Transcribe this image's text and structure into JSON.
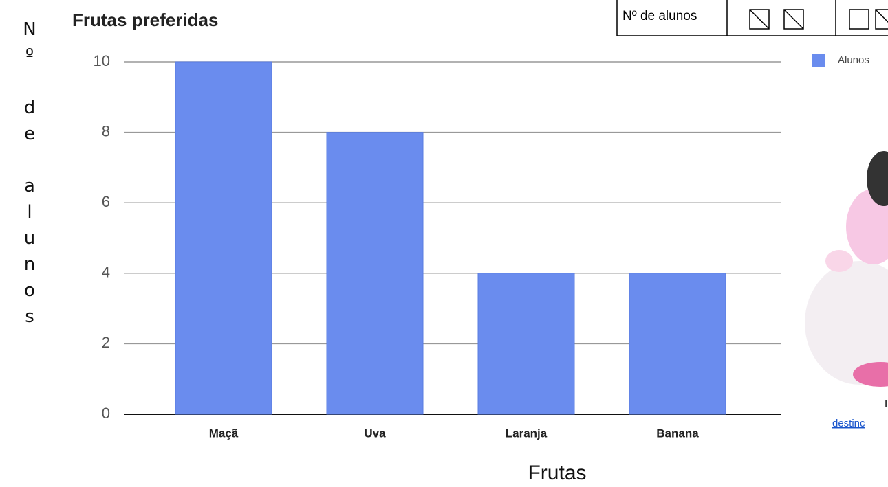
{
  "chart_data": {
    "type": "bar",
    "title": "Frutas preferidas",
    "x_label": "Frutas",
    "y_label": "Nº de alunos",
    "categories": [
      "Maçã",
      "Uva",
      "Laranja",
      "Banana"
    ],
    "series": [
      {
        "name": "Alunos",
        "color": "#6a8cee",
        "values": [
          10,
          8,
          4,
          4
        ]
      }
    ],
    "ylim": [
      0,
      10
    ],
    "yticks": [
      0,
      2,
      4,
      6,
      8,
      10
    ],
    "grid": true,
    "legend": "right"
  },
  "table_header": "Nº de alunos",
  "caption_fragments": [
    "I",
    "destinc"
  ]
}
